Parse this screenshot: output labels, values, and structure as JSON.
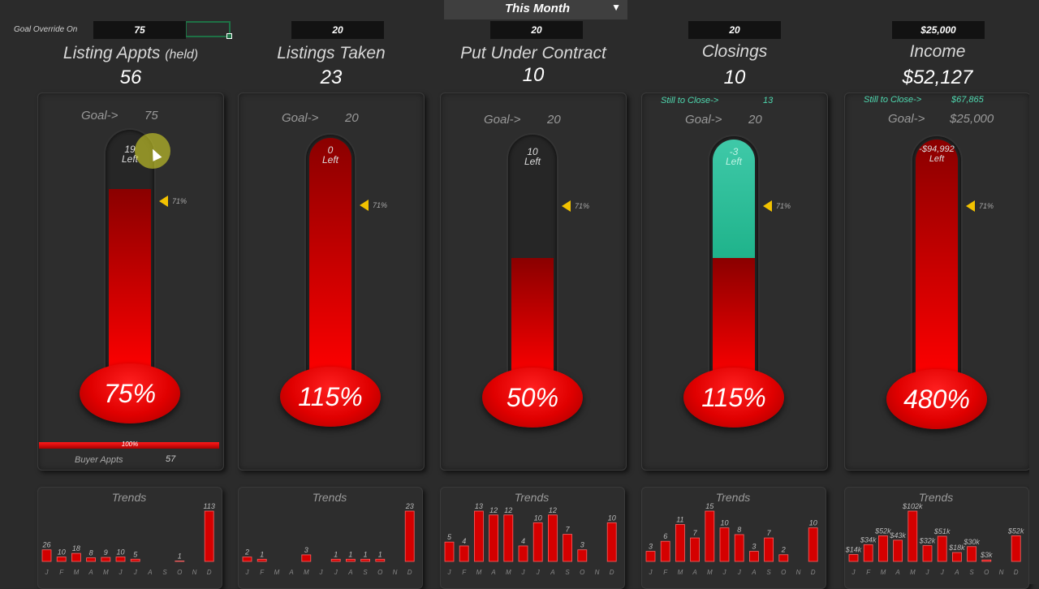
{
  "header": {
    "override_label": "Goal Override On",
    "period": "This Month",
    "goal_inputs": [
      "75",
      "20",
      "20",
      "20",
      "$25,000"
    ]
  },
  "colors": {
    "red": "#e00000",
    "teal": "#2ec4a0",
    "marker": "#f2c200",
    "background": "#2b2b2b"
  },
  "metrics": [
    {
      "title": "Listing Appts",
      "title_sub": "(held)",
      "value": "56",
      "goal_label": "Goal->",
      "goal_value": "75",
      "left_value": "19",
      "left_label": "Left",
      "percent_label": "75%",
      "fill_fraction": 0.75,
      "marker_label": "71%",
      "buyer": {
        "bar_label": "100%",
        "label": "Buyer Appts",
        "value": "57"
      },
      "trend": {
        "title": "Trends",
        "months": [
          "J",
          "F",
          "M",
          "A",
          "M",
          "J",
          "J",
          "A",
          "S",
          "O",
          "N",
          "D"
        ],
        "values": [
          26,
          10,
          18,
          8,
          9,
          10,
          5,
          0,
          0,
          1,
          0,
          113
        ],
        "labels": [
          "26",
          "10",
          "18",
          "8",
          "9",
          "10",
          "5",
          "",
          "",
          "1",
          "",
          "113"
        ],
        "max": 113
      }
    },
    {
      "title": "Listings Taken",
      "title_sub": "",
      "value": "23",
      "goal_label": "Goal->",
      "goal_value": "20",
      "left_value": "0",
      "left_label": "Left",
      "percent_label": "115%",
      "fill_fraction": 1.0,
      "marker_label": "71%",
      "trend": {
        "title": "Trends",
        "months": [
          "J",
          "F",
          "M",
          "A",
          "M",
          "J",
          "J",
          "A",
          "S",
          "O",
          "N",
          "D"
        ],
        "values": [
          2,
          1,
          0,
          0,
          3,
          0,
          1,
          1,
          1,
          1,
          0,
          23
        ],
        "labels": [
          "2",
          "1",
          "",
          "",
          "3",
          "",
          "1",
          "1",
          "1",
          "1",
          "",
          "23"
        ],
        "max": 23
      }
    },
    {
      "title": "Put Under Contract",
      "title_sub": "",
      "value": "10",
      "goal_label": "Goal->",
      "goal_value": "20",
      "left_value": "10",
      "left_label": "Left",
      "percent_label": "50%",
      "fill_fraction": 0.5,
      "marker_label": "71%",
      "trend": {
        "title": "Trends",
        "months": [
          "J",
          "F",
          "M",
          "A",
          "M",
          "J",
          "J",
          "A",
          "S",
          "O",
          "N",
          "D"
        ],
        "values": [
          5,
          4,
          13,
          12,
          12,
          4,
          10,
          12,
          7,
          3,
          0,
          10
        ],
        "labels": [
          "5",
          "4",
          "13",
          "12",
          "12",
          "4",
          "10",
          "12",
          "7",
          "3",
          "",
          "10"
        ],
        "max": 13
      }
    },
    {
      "title": "Closings",
      "title_sub": "",
      "value": "10",
      "still_label": "Still to Close->",
      "still_value": "13",
      "goal_label": "Goal->",
      "goal_value": "20",
      "left_value": "-3",
      "left_label": "Left",
      "percent_label": "115%",
      "fill_fraction": 0.5,
      "over_fraction": 0.5,
      "marker_label": "71%",
      "trend": {
        "title": "Trends",
        "months": [
          "J",
          "F",
          "M",
          "A",
          "M",
          "J",
          "J",
          "A",
          "S",
          "O",
          "N",
          "D"
        ],
        "values": [
          3,
          6,
          11,
          7,
          15,
          10,
          8,
          3,
          7,
          2,
          0,
          10
        ],
        "labels": [
          "3",
          "6",
          "11",
          "7",
          "15",
          "10",
          "8",
          "3",
          "7",
          "2",
          "",
          "10"
        ],
        "max": 15
      }
    },
    {
      "title": "Income",
      "title_sub": "",
      "value": "$52,127",
      "still_label": "Still to Close->",
      "still_value": "$67,865",
      "goal_label": "Goal->",
      "goal_value": "$25,000",
      "left_value": "-$94,992",
      "left_label": "Left",
      "percent_label": "480%",
      "fill_fraction": 1.0,
      "marker_label": "71%",
      "trend": {
        "title": "Trends",
        "months": [
          "J",
          "F",
          "M",
          "A",
          "M",
          "J",
          "J",
          "A",
          "S",
          "O",
          "N",
          "D"
        ],
        "values": [
          14,
          34,
          52,
          43,
          102,
          32,
          51,
          18,
          30,
          3,
          0,
          52
        ],
        "labels": [
          "$14k",
          "$34k",
          "$52k",
          "$43k",
          "$102k",
          "$32k",
          "$51k",
          "$18k",
          "$30k",
          "$3k",
          "",
          "$52k"
        ],
        "max": 102
      }
    }
  ]
}
